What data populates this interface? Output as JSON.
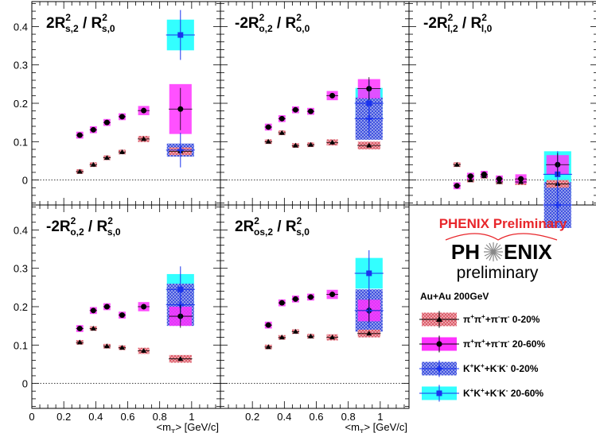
{
  "chart_data": {
    "type": "scatter",
    "x_tick_labels": [
      "0",
      "0.2",
      "0.4",
      "0.6",
      "0.8",
      "1"
    ],
    "y_tick_labels": [
      "0",
      "0.1",
      "0.2",
      "0.3",
      "0.4"
    ],
    "xlabel_parts": {
      "pre": "<m",
      "sub": "T",
      "post": "> [GeV/c]"
    },
    "xlim": [
      0,
      1.18
    ],
    "ylim": [
      -0.065,
      0.465
    ],
    "colors": {
      "pi_0_20": "#e8707a",
      "pi_20_60": "#ff33ff",
      "k_0_20": "#3344dd",
      "k_20_60": "#33ffff",
      "marker_blue": "#1a33ee",
      "marker_black": "#000000"
    },
    "panels": [
      {
        "title": {
          "main": "2R",
          "sup": "2",
          "sub": "s,2",
          "sep": " / R",
          "sup2": "2",
          "sub2": "s,0"
        },
        "series": {
          "pi_0_20": [
            [
              0.3,
              0.022
            ],
            [
              0.385,
              0.04
            ],
            [
              0.47,
              0.058
            ],
            [
              0.565,
              0.073
            ],
            [
              0.7,
              0.107
            ],
            [
              0.93,
              0.075
            ]
          ],
          "pi_20_60": [
            [
              0.3,
              0.117
            ],
            [
              0.385,
              0.131
            ],
            [
              0.47,
              0.15
            ],
            [
              0.565,
              0.165
            ],
            [
              0.7,
              0.181
            ],
            [
              0.93,
              0.185
            ]
          ],
          "k_0_20": [
            [
              0.93,
              0.078
            ]
          ],
          "k_20_60": [
            [
              0.93,
              0.378
            ]
          ]
        }
      },
      {
        "title": {
          "main": "-2R",
          "sup": "2",
          "sub": "o,2",
          "sep": " / R",
          "sup2": "2",
          "sub2": "o,0"
        },
        "series": {
          "pi_0_20": [
            [
              0.3,
              0.1
            ],
            [
              0.385,
              0.123
            ],
            [
              0.47,
              0.09
            ],
            [
              0.565,
              0.092
            ],
            [
              0.7,
              0.098
            ],
            [
              0.93,
              0.09
            ]
          ],
          "pi_20_60": [
            [
              0.3,
              0.138
            ],
            [
              0.385,
              0.16
            ],
            [
              0.47,
              0.183
            ],
            [
              0.565,
              0.179
            ],
            [
              0.7,
              0.22
            ],
            [
              0.93,
              0.238
            ]
          ],
          "k_0_20": [
            [
              0.93,
              0.16
            ]
          ],
          "k_20_60": [
            [
              0.93,
              0.2
            ]
          ]
        }
      },
      {
        "title": {
          "main": "-2R",
          "sup": "2",
          "sub": "l,2",
          "sep": " / R",
          "sup2": "2",
          "sub2": "l,0"
        },
        "series": {
          "pi_0_20": [
            [
              0.3,
              0.04
            ],
            [
              0.385,
              0.0
            ],
            [
              0.47,
              0.01
            ],
            [
              0.565,
              -0.005
            ],
            [
              0.7,
              -0.005
            ],
            [
              0.93,
              -0.01
            ]
          ],
          "pi_20_60": [
            [
              0.3,
              -0.015
            ],
            [
              0.385,
              0.01
            ],
            [
              0.47,
              0.015
            ],
            [
              0.565,
              0.003
            ],
            [
              0.7,
              0.003
            ],
            [
              0.93,
              0.04
            ]
          ],
          "k_0_20": [
            [
              0.93,
              -0.065
            ]
          ],
          "k_20_60": [
            [
              0.93,
              0.015
            ]
          ]
        }
      },
      {
        "title": {
          "main": "-2R",
          "sup": "2",
          "sub": "o,2",
          "sep": " / R",
          "sup2": "2",
          "sub2": "s,0"
        },
        "series": {
          "pi_0_20": [
            [
              0.3,
              0.107
            ],
            [
              0.385,
              0.143
            ],
            [
              0.47,
              0.097
            ],
            [
              0.565,
              0.093
            ],
            [
              0.7,
              0.085
            ],
            [
              0.93,
              0.064
            ]
          ],
          "pi_20_60": [
            [
              0.3,
              0.143
            ],
            [
              0.385,
              0.19
            ],
            [
              0.47,
              0.2
            ],
            [
              0.565,
              0.178
            ],
            [
              0.7,
              0.2
            ],
            [
              0.93,
              0.175
            ]
          ],
          "k_0_20": [
            [
              0.93,
              0.205
            ]
          ],
          "k_20_60": [
            [
              0.93,
              0.245
            ]
          ]
        }
      },
      {
        "title": {
          "main": "2R",
          "sup": "2",
          "sub": "os,2",
          "sep": " / R",
          "sup2": "2",
          "sub2": "s,0"
        },
        "series": {
          "pi_0_20": [
            [
              0.3,
              0.095
            ],
            [
              0.385,
              0.12
            ],
            [
              0.47,
              0.135
            ],
            [
              0.565,
              0.123
            ],
            [
              0.7,
              0.12
            ],
            [
              0.93,
              0.13
            ]
          ],
          "pi_20_60": [
            [
              0.3,
              0.152
            ],
            [
              0.385,
              0.21
            ],
            [
              0.47,
              0.22
            ],
            [
              0.565,
              0.225
            ],
            [
              0.7,
              0.232
            ],
            [
              0.93,
              0.19
            ]
          ],
          "k_0_20": [
            [
              0.93,
              0.19
            ]
          ],
          "k_20_60": [
            [
              0.93,
              0.287
            ]
          ]
        }
      }
    ],
    "legend": [
      {
        "key": "pi_0_20",
        "marker": "triangle",
        "label_parts": [
          "π",
          "+",
          "π",
          "+",
          "+π",
          "-",
          "π",
          "-",
          " 0-20%"
        ]
      },
      {
        "key": "pi_20_60",
        "marker": "circle",
        "label_parts": [
          "π",
          "+",
          "π",
          "+",
          "+π",
          "-",
          "π",
          "-",
          " 20-60%"
        ]
      },
      {
        "key": "k_0_20",
        "marker": "cross",
        "label_parts": [
          "K",
          "+",
          "K",
          "+",
          "+K",
          "-",
          "K",
          "-",
          " 0-20%"
        ]
      },
      {
        "key": "k_20_60",
        "marker": "square",
        "label_parts": [
          "K",
          "+",
          "K",
          "+",
          "+K",
          "-",
          "K",
          "-",
          " 20-60%"
        ]
      }
    ]
  },
  "branding": {
    "prelim_red": "PHENIX Preliminary",
    "logo_left": "PH",
    "logo_right": "ENIX",
    "logo_sub": "preliminary",
    "system": "Au+Au 200GeV"
  }
}
